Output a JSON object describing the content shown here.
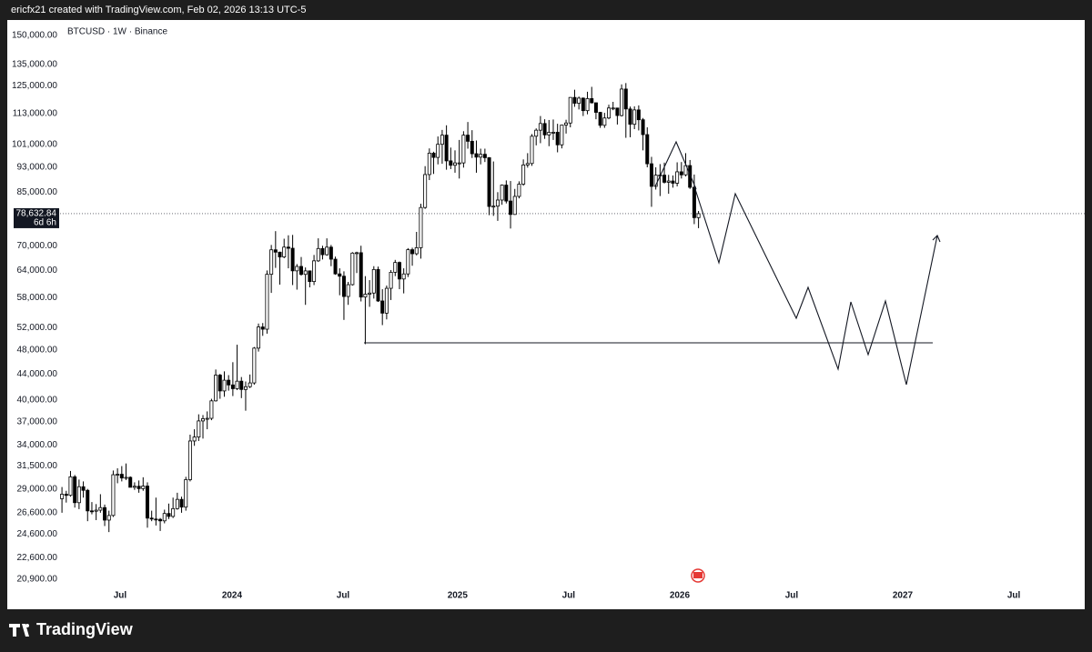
{
  "header": {
    "text": "ericfx21 created with TradingView.com, Feb 02, 2026 13:13 UTC-5"
  },
  "footer": {
    "brand": "TradingView"
  },
  "chart_data": {
    "type": "candlestick",
    "title": "BTCUSD · 1W · Binance",
    "log": true,
    "grid": false,
    "up_color": "#ffffff",
    "down_color": "#000000",
    "wick_color": "#000000",
    "ylim": [
      20160,
      155500
    ],
    "yticks": [
      {
        "value": 150000,
        "label": "150,000.00"
      },
      {
        "value": 135000,
        "label": "135,000.00"
      },
      {
        "value": 125000,
        "label": "125,000.00"
      },
      {
        "value": 113000,
        "label": "113,000.00"
      },
      {
        "value": 101000,
        "label": "101,000.00"
      },
      {
        "value": 93000,
        "label": "93,000.00"
      },
      {
        "value": 85000,
        "label": "85,000.00"
      },
      {
        "value": 70000,
        "label": "70,000.00"
      },
      {
        "value": 64000,
        "label": "64,000.00"
      },
      {
        "value": 58000,
        "label": "58,000.00"
      },
      {
        "value": 52000,
        "label": "52,000.00"
      },
      {
        "value": 48000,
        "label": "48,000.00"
      },
      {
        "value": 44000,
        "label": "44,000.00"
      },
      {
        "value": 40000,
        "label": "40,000.00"
      },
      {
        "value": 37000,
        "label": "37,000.00"
      },
      {
        "value": 34000,
        "label": "34,000.00"
      },
      {
        "value": 31500,
        "label": "31,500.00"
      },
      {
        "value": 29000,
        "label": "29,000.00"
      },
      {
        "value": 26600,
        "label": "26,600.00"
      },
      {
        "value": 24600,
        "label": "24,600.00"
      },
      {
        "value": 22600,
        "label": "22,600.00"
      },
      {
        "value": 20900,
        "label": "20,900.00"
      }
    ],
    "xlim": [
      -12.8,
      239.4
    ],
    "xticks": [
      {
        "value": 13.6,
        "label": "Jul"
      },
      {
        "value": 39.8,
        "label": "2024"
      },
      {
        "value": 65.8,
        "label": "Jul"
      },
      {
        "value": 92.6,
        "label": "2025"
      },
      {
        "value": 118.6,
        "label": "Jul"
      },
      {
        "value": 144.6,
        "label": "2026"
      },
      {
        "value": 170.8,
        "label": "Jul"
      },
      {
        "value": 196.8,
        "label": "2027"
      },
      {
        "value": 222.8,
        "label": "Jul"
      }
    ],
    "last_price": {
      "value": 78632.84,
      "label": "78,632.84"
    },
    "countdown": "6d 6h",
    "ohlc": [
      [
        27990,
        29200,
        26600,
        28450
      ],
      [
        28450,
        28800,
        27600,
        28330
      ],
      [
        28330,
        30950,
        28200,
        30300
      ],
      [
        30300,
        30500,
        27100,
        27590
      ],
      [
        27590,
        30000,
        26950,
        29230
      ],
      [
        29230,
        29800,
        28100,
        28850
      ],
      [
        28850,
        29000,
        25800,
        26780
      ],
      [
        26780,
        27650,
        26450,
        26750
      ],
      [
        26750,
        27450,
        25900,
        26850
      ],
      [
        26850,
        28450,
        26600,
        27100
      ],
      [
        27100,
        27400,
        25350,
        25900
      ],
      [
        25900,
        26800,
        24800,
        26340
      ],
      [
        26340,
        31000,
        26200,
        30530
      ],
      [
        30530,
        31250,
        29600,
        30580
      ],
      [
        30580,
        31500,
        29800,
        30170
      ],
      [
        30170,
        31800,
        29950,
        30240
      ],
      [
        30240,
        30350,
        29500,
        29170
      ],
      [
        29170,
        29700,
        28900,
        29280
      ],
      [
        29280,
        29900,
        28600,
        29030
      ],
      [
        29030,
        30250,
        28800,
        29300
      ],
      [
        29300,
        29700,
        25200,
        26090
      ],
      [
        26090,
        26800,
        25800,
        26000
      ],
      [
        26000,
        28100,
        25400,
        25970
      ],
      [
        25970,
        26100,
        24900,
        25830
      ],
      [
        25830,
        26900,
        25600,
        26530
      ],
      [
        26530,
        27500,
        26000,
        26250
      ],
      [
        26250,
        28100,
        26100,
        27000
      ],
      [
        27000,
        28600,
        26900,
        27920
      ],
      [
        27920,
        28200,
        26600,
        27150
      ],
      [
        27150,
        30300,
        26800,
        29990
      ],
      [
        29990,
        35300,
        29800,
        34500
      ],
      [
        34500,
        36000,
        33900,
        35000
      ],
      [
        35000,
        38000,
        34500,
        37100
      ],
      [
        37100,
        37900,
        34800,
        37400
      ],
      [
        37400,
        38400,
        36000,
        37450
      ],
      [
        37450,
        40200,
        37200,
        39900
      ],
      [
        39900,
        44700,
        39800,
        43800
      ],
      [
        43800,
        44000,
        40200,
        41360
      ],
      [
        41360,
        44400,
        40500,
        43000
      ],
      [
        43000,
        43800,
        41400,
        42270
      ],
      [
        42270,
        45900,
        40600,
        41700
      ],
      [
        41700,
        48900,
        41500,
        42850
      ],
      [
        42850,
        43500,
        40300,
        41580
      ],
      [
        41580,
        42800,
        38500,
        42000
      ],
      [
        42000,
        43900,
        41800,
        42580
      ],
      [
        42580,
        48500,
        42300,
        48300
      ],
      [
        48300,
        52800,
        47700,
        52150
      ],
      [
        52150,
        52900,
        50500,
        51730
      ],
      [
        51730,
        64000,
        50900,
        63120
      ],
      [
        63120,
        70200,
        59000,
        68970
      ],
      [
        68970,
        73800,
        64600,
        68390
      ],
      [
        68390,
        68500,
        60800,
        67210
      ],
      [
        67210,
        71800,
        66900,
        69650
      ],
      [
        69650,
        72700,
        64500,
        69360
      ],
      [
        69360,
        72800,
        60700,
        63910
      ],
      [
        63910,
        65500,
        59700,
        64940
      ],
      [
        64940,
        67200,
        62800,
        63100
      ],
      [
        63100,
        64700,
        56500,
        63900
      ],
      [
        63900,
        64000,
        60200,
        61480
      ],
      [
        61480,
        67700,
        60700,
        66270
      ],
      [
        66270,
        71900,
        66000,
        69290
      ],
      [
        69290,
        70000,
        66600,
        67760
      ],
      [
        67760,
        71900,
        67500,
        69640
      ],
      [
        69640,
        70200,
        65000,
        66670
      ],
      [
        66670,
        67300,
        63000,
        63210
      ],
      [
        63210,
        64500,
        58500,
        62680
      ],
      [
        62680,
        63800,
        53500,
        58240
      ],
      [
        58240,
        61400,
        56500,
        60790
      ],
      [
        60790,
        68400,
        60600,
        68160
      ],
      [
        68160,
        68500,
        63400,
        68250
      ],
      [
        68250,
        70000,
        57200,
        58120
      ],
      [
        58120,
        62700,
        49000,
        58720
      ],
      [
        58720,
        61800,
        56100,
        58970
      ],
      [
        58970,
        65000,
        57800,
        64220
      ],
      [
        64220,
        64900,
        57100,
        57300
      ],
      [
        57300,
        59800,
        52500,
        54830
      ],
      [
        54830,
        60600,
        53600,
        59990
      ],
      [
        59990,
        64100,
        57500,
        63580
      ],
      [
        63580,
        66500,
        62700,
        65880
      ],
      [
        65880,
        66100,
        59800,
        62050
      ],
      [
        62050,
        64500,
        58900,
        63200
      ],
      [
        63200,
        69400,
        62500,
        69000
      ],
      [
        69000,
        69500,
        65100,
        68000
      ],
      [
        68000,
        73600,
        67600,
        69500
      ],
      [
        69500,
        81500,
        66800,
        80400
      ],
      [
        80400,
        93400,
        80000,
        90600
      ],
      [
        90600,
        99600,
        88800,
        97900
      ],
      [
        97900,
        98400,
        90800,
        96400
      ],
      [
        96400,
        104000,
        94000,
        101100
      ],
      [
        101100,
        106500,
        94200,
        104500
      ],
      [
        104500,
        108300,
        92200,
        95200
      ],
      [
        95200,
        99900,
        92400,
        93700
      ],
      [
        93700,
        98900,
        91200,
        94500
      ],
      [
        94500,
        102700,
        89300,
        94500
      ],
      [
        94500,
        106000,
        92900,
        104500
      ],
      [
        104500,
        109600,
        99500,
        102200
      ],
      [
        102200,
        106400,
        96200,
        97700
      ],
      [
        97700,
        102500,
        91200,
        96500
      ],
      [
        96500,
        99500,
        94000,
        97500
      ],
      [
        97500,
        99500,
        94800,
        96300
      ],
      [
        96300,
        96500,
        78200,
        80700
      ],
      [
        80700,
        95000,
        78000,
        80800
      ],
      [
        80800,
        85000,
        76600,
        82600
      ],
      [
        82600,
        87400,
        81200,
        87200
      ],
      [
        87200,
        88700,
        81600,
        82300
      ],
      [
        82300,
        88500,
        74500,
        78400
      ],
      [
        78400,
        86000,
        78300,
        83700
      ],
      [
        83700,
        88400,
        83100,
        87500
      ],
      [
        87500,
        95700,
        87000,
        93800
      ],
      [
        93800,
        97900,
        92900,
        94300
      ],
      [
        94300,
        104900,
        93500,
        104100
      ],
      [
        104100,
        107100,
        100700,
        106400
      ],
      [
        106400,
        112000,
        101500,
        109000
      ],
      [
        109000,
        110700,
        103100,
        104600
      ],
      [
        104600,
        110400,
        100400,
        105600
      ],
      [
        105600,
        110600,
        102700,
        105600
      ],
      [
        105600,
        108900,
        98200,
        100900
      ],
      [
        100900,
        108500,
        99600,
        108400
      ],
      [
        108400,
        110500,
        105100,
        109200
      ],
      [
        109200,
        119900,
        107500,
        119800
      ],
      [
        119800,
        123200,
        115800,
        117300
      ],
      [
        117300,
        120200,
        114700,
        119500
      ],
      [
        119500,
        119800,
        112000,
        114200
      ],
      [
        114200,
        122300,
        112700,
        119300
      ],
      [
        119300,
        124500,
        117200,
        117500
      ],
      [
        117500,
        117600,
        110700,
        113500
      ],
      [
        113500,
        113700,
        107300,
        108300
      ],
      [
        108300,
        113300,
        107300,
        111200
      ],
      [
        111200,
        116700,
        110700,
        115300
      ],
      [
        115300,
        117900,
        114400,
        115300
      ],
      [
        115300,
        115400,
        108600,
        112200
      ],
      [
        112200,
        125600,
        111800,
        123500
      ],
      [
        123500,
        126200,
        103500,
        114900
      ],
      [
        114900,
        115900,
        103700,
        108700
      ],
      [
        108700,
        116000,
        106800,
        114500
      ],
      [
        114500,
        116400,
        106300,
        110500
      ],
      [
        110500,
        111200,
        98900,
        104700
      ],
      [
        104700,
        107500,
        93000,
        94200
      ],
      [
        94200,
        96600,
        80600,
        86800
      ],
      [
        86800,
        93000,
        85800,
        90400
      ],
      [
        90400,
        94100,
        83800,
        90400
      ],
      [
        90400,
        94600,
        87700,
        88100
      ],
      [
        88100,
        90500,
        84500,
        88500
      ],
      [
        88500,
        90300,
        86400,
        87800
      ],
      [
        87800,
        94700,
        86800,
        91500
      ],
      [
        91500,
        94800,
        89300,
        90500
      ],
      [
        90500,
        97900,
        90000,
        93600
      ],
      [
        93600,
        95500,
        86000,
        86500
      ],
      [
        86500,
        90600,
        75700,
        77500
      ],
      [
        77500,
        79400,
        74600,
        78632.84
      ]
    ]
  }
}
